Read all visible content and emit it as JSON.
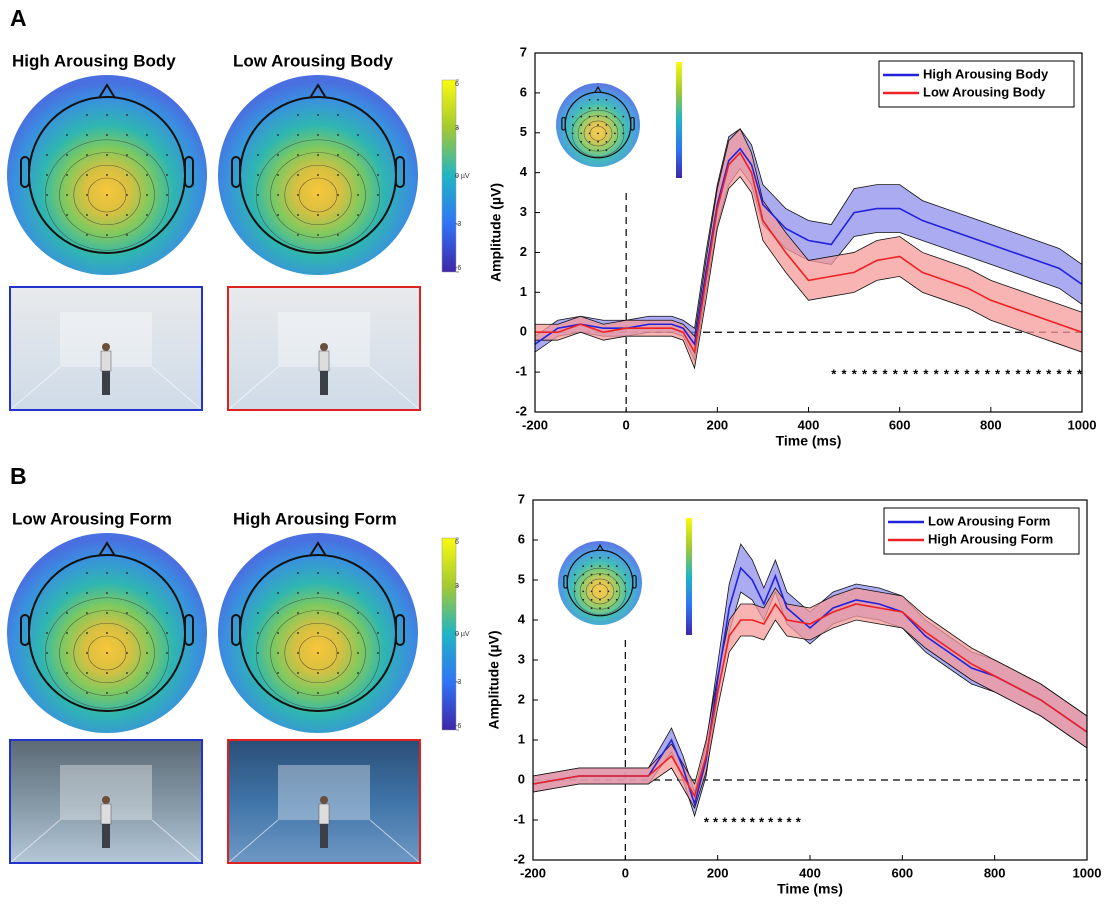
{
  "chart_data": [
    {
      "type": "line",
      "x_label": "Time (ms)",
      "y_label": "Amplitude (µV)",
      "x": [
        -200,
        -150,
        -100,
        -50,
        0,
        50,
        100,
        125,
        150,
        175,
        200,
        225,
        250,
        275,
        300,
        325,
        350,
        400,
        450,
        500,
        550,
        600,
        650,
        700,
        750,
        800,
        850,
        900,
        950,
        1000
      ],
      "series": [
        {
          "name": "High Arousing Body",
          "color": "#2222dd",
          "band_color": "#8f8fee",
          "values": [
            -0.3,
            0.1,
            0.2,
            0.1,
            0.1,
            0.2,
            0.2,
            0.1,
            -0.3,
            1.5,
            3.2,
            4.3,
            4.6,
            4.2,
            3.2,
            2.9,
            2.6,
            2.3,
            2.2,
            3.0,
            3.1,
            3.1,
            2.8,
            2.6,
            2.4,
            2.2,
            2.0,
            1.8,
            1.6,
            1.2
          ],
          "upper": [
            -0.1,
            0.3,
            0.4,
            0.3,
            0.3,
            0.4,
            0.4,
            0.3,
            0.1,
            2.0,
            3.7,
            4.9,
            5.1,
            4.7,
            3.7,
            3.4,
            3.1,
            2.8,
            2.7,
            3.6,
            3.7,
            3.7,
            3.3,
            3.1,
            2.9,
            2.7,
            2.5,
            2.3,
            2.1,
            1.7
          ],
          "lower": [
            -0.5,
            -0.1,
            0.0,
            -0.1,
            -0.1,
            0.0,
            0.0,
            -0.1,
            -0.7,
            1.0,
            2.7,
            3.7,
            4.1,
            3.7,
            2.7,
            2.4,
            2.1,
            1.8,
            1.7,
            2.4,
            2.5,
            2.5,
            2.3,
            2.1,
            1.9,
            1.7,
            1.5,
            1.3,
            1.1,
            0.7
          ]
        },
        {
          "name": "Low Arousing Body",
          "color": "#ee2222",
          "band_color": "#f59a9a",
          "values": [
            0.0,
            0.0,
            0.2,
            0.0,
            0.1,
            0.1,
            0.1,
            0.0,
            -0.5,
            1.3,
            3.1,
            4.2,
            4.5,
            4.0,
            2.8,
            2.4,
            2.0,
            1.3,
            1.4,
            1.5,
            1.8,
            1.9,
            1.5,
            1.3,
            1.1,
            0.8,
            0.6,
            0.4,
            0.2,
            0.0
          ],
          "upper": [
            0.2,
            0.2,
            0.4,
            0.2,
            0.3,
            0.3,
            0.3,
            0.2,
            -0.1,
            1.8,
            3.6,
            4.8,
            5.1,
            4.5,
            3.3,
            2.9,
            2.5,
            1.8,
            1.9,
            2.0,
            2.3,
            2.4,
            2.0,
            1.8,
            1.6,
            1.3,
            1.1,
            0.9,
            0.7,
            0.5
          ],
          "lower": [
            -0.2,
            -0.2,
            0.0,
            -0.2,
            -0.1,
            -0.1,
            -0.1,
            -0.2,
            -0.9,
            0.8,
            2.6,
            3.6,
            3.9,
            3.5,
            2.3,
            1.9,
            1.5,
            0.8,
            0.9,
            1.0,
            1.3,
            1.4,
            1.0,
            0.8,
            0.6,
            0.3,
            0.1,
            -0.1,
            -0.3,
            -0.5
          ]
        }
      ],
      "xlim": [
        -200,
        1000
      ],
      "xticks": [
        -200,
        0,
        200,
        400,
        600,
        800,
        1000
      ],
      "ylim": [
        -2,
        7
      ],
      "yticks": [
        -2,
        -1,
        0,
        1,
        2,
        3,
        4,
        5,
        6,
        7
      ],
      "zero_lines": true,
      "legend": "upper right",
      "annotations": [
        {
          "text": "*************************",
          "x": [
            450,
            1000
          ],
          "y": -1
        }
      ]
    },
    {
      "type": "line",
      "x_label": "Time (ms)",
      "y_label": "Amplitude (µV)",
      "x": [
        -200,
        -150,
        -100,
        -50,
        0,
        50,
        100,
        125,
        150,
        175,
        200,
        225,
        250,
        275,
        300,
        325,
        350,
        400,
        450,
        500,
        550,
        600,
        650,
        700,
        750,
        800,
        850,
        900,
        950,
        1000
      ],
      "series": [
        {
          "name": "Low Arousing Form",
          "color": "#2222dd",
          "band_color": "#8f8fee",
          "values": [
            -0.1,
            0.0,
            0.1,
            0.1,
            0.1,
            0.1,
            1.0,
            0.3,
            -0.6,
            0.5,
            2.5,
            4.3,
            5.3,
            5.0,
            4.4,
            5.1,
            4.3,
            3.8,
            4.3,
            4.5,
            4.4,
            4.2,
            3.6,
            3.2,
            2.8,
            2.6,
            2.3,
            2.0,
            1.6,
            1.2
          ],
          "upper": [
            0.1,
            0.2,
            0.3,
            0.3,
            0.3,
            0.3,
            1.3,
            0.6,
            -0.3,
            0.9,
            2.9,
            4.9,
            5.9,
            5.5,
            4.8,
            5.5,
            4.7,
            4.2,
            4.7,
            4.9,
            4.8,
            4.6,
            4.0,
            3.6,
            3.2,
            3.0,
            2.7,
            2.4,
            2.0,
            1.6
          ],
          "lower": [
            -0.3,
            -0.2,
            -0.1,
            -0.1,
            -0.1,
            -0.1,
            0.7,
            0.0,
            -0.9,
            0.1,
            2.1,
            3.7,
            4.7,
            4.5,
            4.0,
            4.7,
            3.9,
            3.4,
            3.9,
            4.1,
            4.0,
            3.8,
            3.2,
            2.8,
            2.4,
            2.2,
            1.9,
            1.6,
            1.2,
            0.8
          ]
        },
        {
          "name": "High Arousing Form",
          "color": "#ee2222",
          "band_color": "#f59a9a",
          "values": [
            -0.1,
            0.0,
            0.1,
            0.1,
            0.1,
            0.1,
            0.6,
            0.1,
            -0.4,
            0.6,
            2.2,
            3.6,
            4.0,
            4.0,
            3.9,
            4.4,
            4.0,
            3.9,
            4.2,
            4.4,
            4.3,
            4.2,
            3.7,
            3.3,
            2.9,
            2.6,
            2.3,
            2.0,
            1.6,
            1.2
          ],
          "upper": [
            0.1,
            0.2,
            0.3,
            0.3,
            0.3,
            0.3,
            0.9,
            0.4,
            -0.1,
            1.0,
            2.6,
            4.0,
            4.4,
            4.4,
            4.3,
            4.8,
            4.4,
            4.3,
            4.6,
            4.8,
            4.7,
            4.6,
            4.1,
            3.7,
            3.3,
            3.0,
            2.7,
            2.4,
            2.0,
            1.6
          ],
          "lower": [
            -0.3,
            -0.2,
            -0.1,
            -0.1,
            -0.1,
            -0.1,
            0.3,
            -0.2,
            -0.7,
            0.2,
            1.8,
            3.2,
            3.6,
            3.6,
            3.5,
            4.0,
            3.6,
            3.5,
            3.8,
            4.0,
            3.9,
            3.8,
            3.3,
            2.9,
            2.5,
            2.2,
            1.9,
            1.6,
            1.2,
            0.8
          ]
        }
      ],
      "xlim": [
        -200,
        1000
      ],
      "xticks": [
        -200,
        0,
        200,
        400,
        600,
        800,
        1000
      ],
      "ylim": [
        -2,
        7
      ],
      "yticks": [
        -2,
        -1,
        0,
        1,
        2,
        3,
        4,
        5,
        6,
        7
      ],
      "zero_lines": true,
      "legend": "upper right",
      "annotations": [
        {
          "text": "***********",
          "x": [
            170,
            380
          ],
          "y": -1
        }
      ]
    }
  ],
  "panels": [
    {
      "label": "A",
      "topomap_titles": [
        "High Arousing Body",
        "Low Arousing Body"
      ],
      "colorbar": {
        "lim": [
          -6,
          6
        ],
        "ticks": [
          6,
          3,
          {
            "value": 0,
            "label": "0 µV"
          },
          -3,
          -6
        ]
      }
    },
    {
      "label": "B",
      "topomap_titles": [
        "Low Arousing Form",
        "High Arousing Form"
      ],
      "colorbar": {
        "lim": [
          -6,
          6
        ],
        "ticks": [
          6,
          3,
          {
            "value": 0,
            "label": "0 µV"
          },
          -3,
          -6
        ]
      }
    }
  ]
}
